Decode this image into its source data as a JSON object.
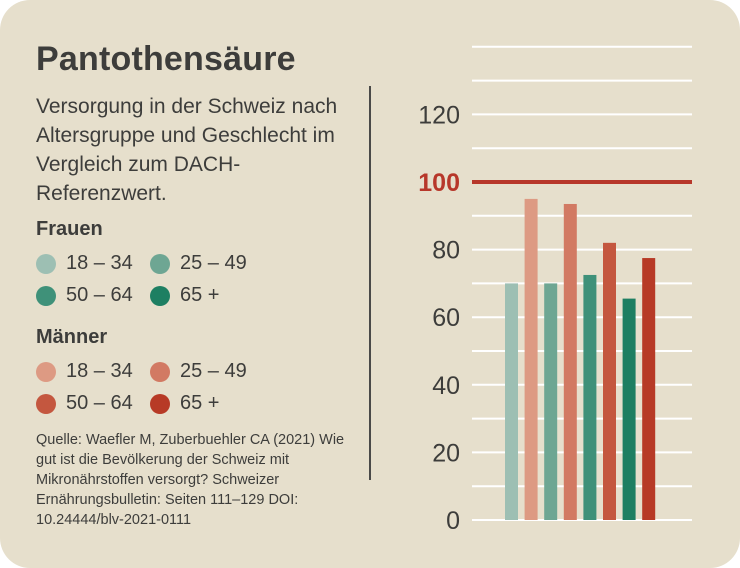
{
  "title": "Pantothensäure",
  "subtitle": "Versorgung in der Schweiz nach Altersgruppe und Geschlecht im Vergleich zum DACH-Referenzwert.",
  "legend": {
    "women": {
      "heading": "Frauen",
      "items": [
        {
          "label": "18 – 34",
          "color": "#9dbfb3"
        },
        {
          "label": "25 – 49",
          "color": "#6ea693"
        },
        {
          "label": "50 – 64",
          "color": "#3f9179"
        },
        {
          "label": "65 +",
          "color": "#1e7f62"
        }
      ]
    },
    "men": {
      "heading": "Männer",
      "items": [
        {
          "label": "18 – 34",
          "color": "#dd9a83"
        },
        {
          "label": "25 – 49",
          "color": "#d27a63"
        },
        {
          "label": "50 – 64",
          "color": "#c4573f"
        },
        {
          "label": "65 +",
          "color": "#b73a26"
        }
      ]
    }
  },
  "source": "Quelle: Waefler M, Zuberbuehler CA (2021) Wie gut ist die Bevölkerung der Schweiz mit Mikronährstoffen versorgt? Schweizer Ernährungsbulletin: Seiten 111–129 DOI: 10.24444/blv-2021-0111",
  "chart_data": {
    "type": "bar",
    "categories": [
      "Frauen 18 – 34",
      "Männer 18 – 34",
      "Frauen 25 – 49",
      "Männer 25 – 49",
      "Frauen 50 – 64",
      "Männer 50 – 64",
      "Frauen 65 +",
      "Männer 65 +"
    ],
    "values": [
      70,
      95,
      70,
      93.5,
      72.5,
      82,
      65.5,
      77.5
    ],
    "colors": [
      "#9dbfb3",
      "#dd9a83",
      "#6ea693",
      "#d27a63",
      "#3f9179",
      "#c4573f",
      "#1e7f62",
      "#b73a26"
    ],
    "ylim": [
      0,
      140
    ],
    "yticks": [
      0,
      20,
      40,
      60,
      80,
      100,
      120
    ],
    "gridlines": [
      0,
      10,
      20,
      30,
      40,
      50,
      60,
      70,
      80,
      90,
      110,
      120,
      130,
      140
    ],
    "reference": {
      "value": 100,
      "label": "100",
      "color": "#b7372a"
    },
    "grid": true,
    "grid_color": "#ffffff",
    "tick_color": "#3d3d3b"
  }
}
